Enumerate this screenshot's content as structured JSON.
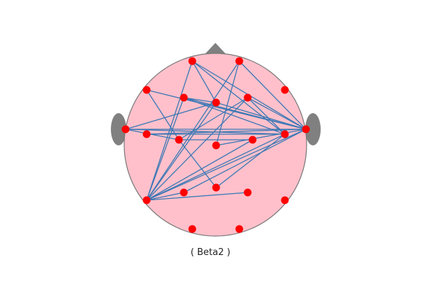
{
  "figure": {
    "caption": "( Beta2 )",
    "band": "Beta2"
  },
  "colors": {
    "head_fill": "#ffc0cb",
    "head_outline": "#777777",
    "ear_nose": "#808080",
    "node": "#ff0000",
    "edge": "#3a78b5",
    "background": "#ffffff"
  },
  "icons": {
    "head": "head-outline-icon",
    "nose": "nose-icon",
    "ear_left": "left-ear-icon",
    "ear_right": "right-ear-icon"
  }
}
